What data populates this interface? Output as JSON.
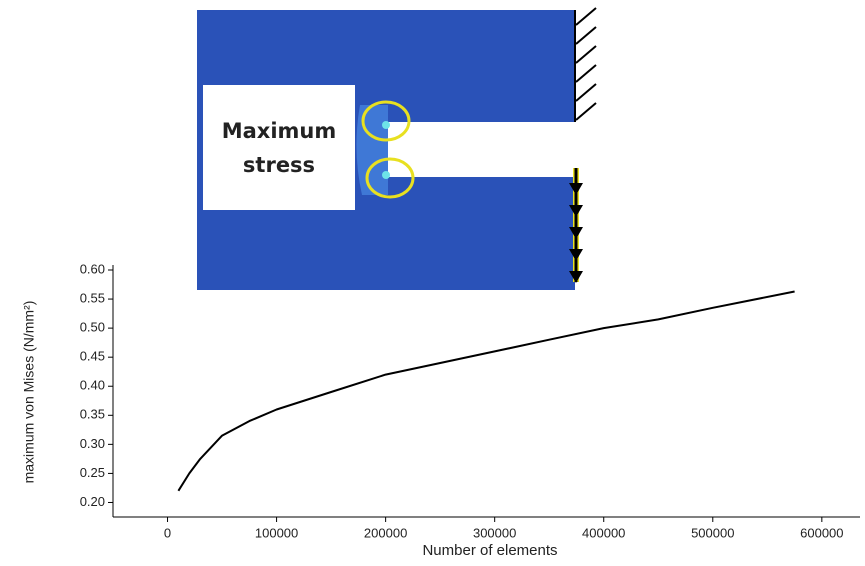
{
  "chart_data": {
    "type": "line",
    "x_label": "Number of elements",
    "y_label": "maximum von Mises (N/mm²)",
    "annotation": "Maximum stress",
    "color": "#000000",
    "x": [
      10000,
      20000,
      30000,
      50000,
      75000,
      100000,
      150000,
      200000,
      250000,
      300000,
      350000,
      400000,
      450000,
      500000,
      575000
    ],
    "values": [
      0.22,
      0.25,
      0.275,
      0.315,
      0.34,
      0.36,
      0.39,
      0.42,
      0.44,
      0.46,
      0.48,
      0.5,
      0.515,
      0.535,
      0.563
    ],
    "xlim": [
      -50000,
      635000
    ],
    "xticks": [
      0,
      100000,
      200000,
      300000,
      400000,
      500000,
      600000
    ],
    "ylim": [
      0.175,
      0.6
    ],
    "yticks": [
      {
        "value": 0.2,
        "label": "0.20"
      },
      0.25,
      {
        "value": 0.3,
        "label": "0.30"
      },
      0.35,
      {
        "value": 0.4,
        "label": "0.40"
      },
      0.45,
      {
        "value": 0.5,
        "label": "0.50"
      },
      0.55,
      {
        "value": 0.6,
        "label": "0.60"
      }
    ],
    "grid": false
  }
}
